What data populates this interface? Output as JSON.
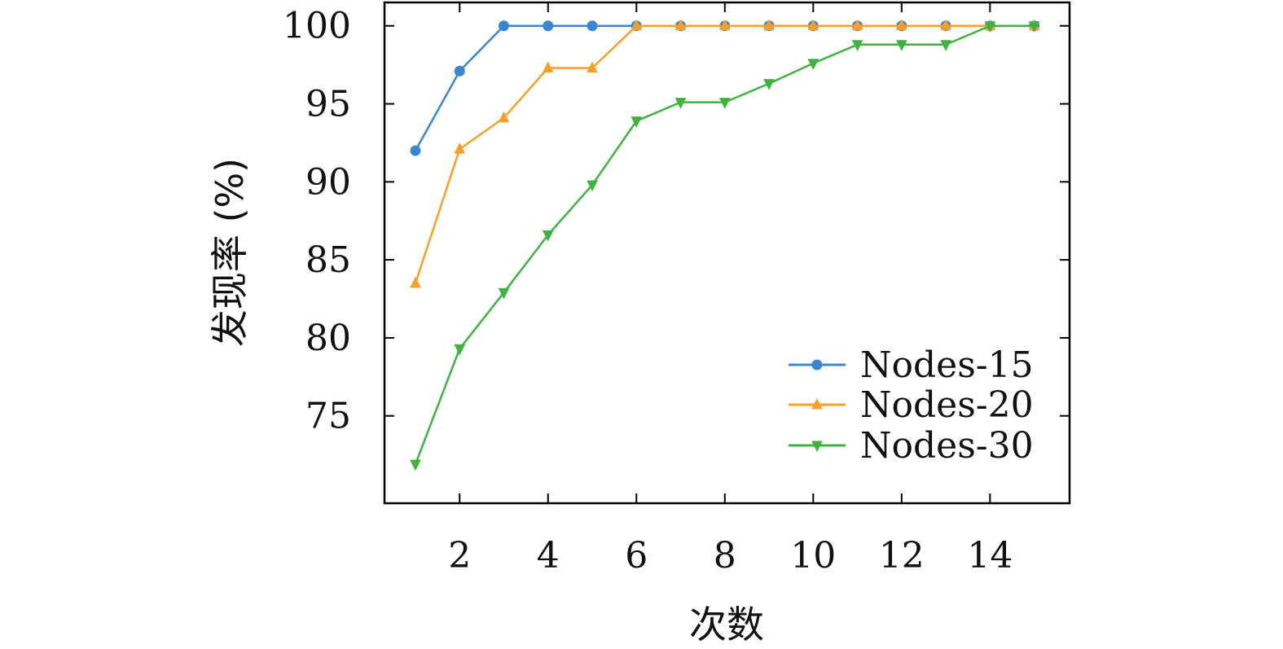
{
  "chart_data": {
    "type": "line",
    "title": "",
    "xlabel": "次数",
    "ylabel": "发现率 (%)",
    "xlim": [
      0.3,
      15.8
    ],
    "ylim": [
      69.4,
      101.5
    ],
    "xticks": [
      2,
      4,
      6,
      8,
      10,
      12,
      14
    ],
    "yticks": [
      75,
      80,
      85,
      90,
      95,
      100
    ],
    "grid": false,
    "legend_position": "bottom-right",
    "x": [
      1,
      2,
      3,
      4,
      5,
      6,
      7,
      8,
      9,
      10,
      11,
      12,
      13,
      14,
      15
    ],
    "series": [
      {
        "name": "Nodes-15",
        "color": "#3a86d0",
        "marker": "circle",
        "values": [
          92.0,
          97.1,
          100,
          100,
          100,
          100,
          100,
          100,
          100,
          100,
          100,
          100,
          100,
          100,
          100
        ]
      },
      {
        "name": "Nodes-20",
        "color": "#f5a02c",
        "marker": "triangle-up",
        "values": [
          83.5,
          92.1,
          94.1,
          97.3,
          97.3,
          100,
          100,
          100,
          100,
          100,
          100,
          100,
          100,
          100,
          100
        ]
      },
      {
        "name": "Nodes-30",
        "color": "#3fb23f",
        "marker": "triangle-down",
        "values": [
          71.9,
          79.3,
          82.9,
          86.6,
          89.8,
          93.9,
          95.1,
          95.1,
          96.3,
          97.6,
          98.8,
          98.8,
          98.8,
          100,
          100
        ]
      }
    ]
  }
}
